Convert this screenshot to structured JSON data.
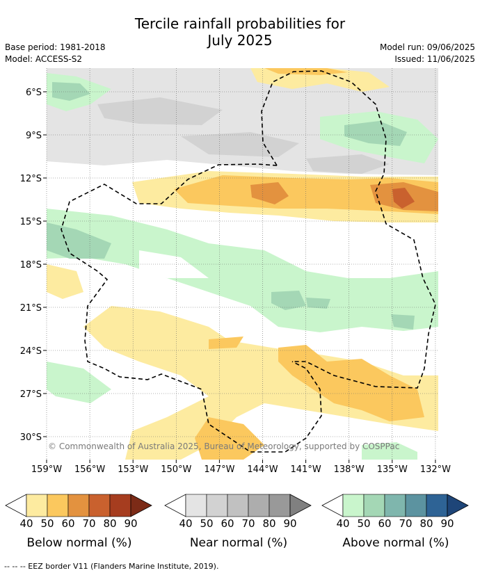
{
  "title": {
    "line1": "Tercile rainfall probabilities for",
    "line2": "July 2025"
  },
  "meta": {
    "base_period": "Base period: 1981-2018",
    "model": "Model: ACCESS-S2",
    "model_run": "Model run: 09/06/2025",
    "issued": "Issued: 11/06/2025"
  },
  "map": {
    "lat_ticks": [
      "6°S",
      "9°S",
      "12°S",
      "15°S",
      "18°S",
      "21°S",
      "24°S",
      "27°S",
      "30°S"
    ],
    "lon_ticks": [
      "159°W",
      "156°W",
      "153°W",
      "150°W",
      "147°W",
      "144°W",
      "141°W",
      "138°W",
      "135°W",
      "132°W"
    ],
    "credit": "© Commonwealth of Australia 2025, Bureau of Meteorology, supported by COSPPac",
    "colors": {
      "below": [
        "#fdeba0",
        "#fbc85e",
        "#e3923f",
        "#c9612e",
        "#a63d1f",
        "#7c2b17"
      ],
      "near": [
        "#e4e4e4",
        "#d2d2d2",
        "#c1c1c1",
        "#adadad",
        "#999999",
        "#808080"
      ],
      "above": [
        "#c9f5cc",
        "#a4d7b5",
        "#7fb6ad",
        "#5c93a0",
        "#2e6395",
        "#1e4578"
      ]
    }
  },
  "legend": {
    "below": {
      "label": "Below normal (%)",
      "ticks": [
        "40",
        "50",
        "60",
        "70",
        "80",
        "90"
      ]
    },
    "near": {
      "label": "Near normal (%)",
      "ticks": [
        "40",
        "50",
        "60",
        "70",
        "80",
        "90"
      ]
    },
    "above": {
      "label": "Above normal (%)",
      "ticks": [
        "40",
        "50",
        "60",
        "70",
        "80",
        "90"
      ]
    },
    "eez": "--  --  -- EEZ border V11 (Flanders Marine Institute, 2019)."
  }
}
